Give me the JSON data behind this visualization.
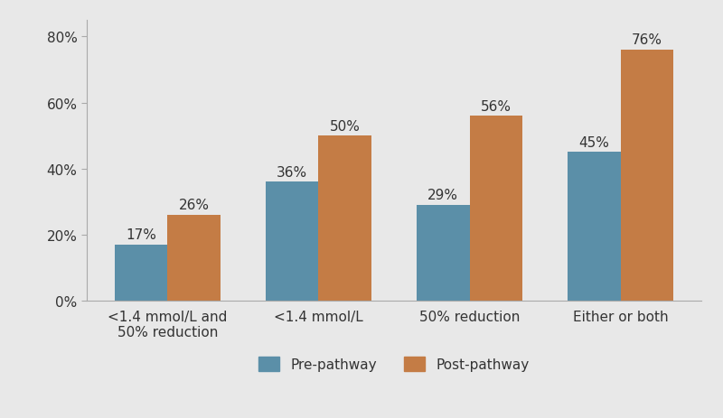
{
  "categories": [
    "<1.4 mmol/L and\n50% reduction",
    "<1.4 mmol/L",
    "50% reduction",
    "Either or both"
  ],
  "pre_values": [
    17,
    36,
    29,
    45
  ],
  "post_values": [
    26,
    50,
    56,
    76
  ],
  "pre_color": "#5b8fa8",
  "post_color": "#c47c45",
  "background_color": "#e8e8e8",
  "ylim": [
    0,
    85
  ],
  "yticks": [
    0,
    20,
    40,
    60,
    80
  ],
  "ytick_labels": [
    "0%",
    "20%",
    "40%",
    "60%",
    "80%"
  ],
  "legend_labels": [
    "Pre-pathway",
    "Post-pathway"
  ],
  "bar_width": 0.35,
  "tick_fontsize": 11,
  "legend_fontsize": 11,
  "value_fontsize": 11,
  "spine_color": "#aaaaaa",
  "text_color": "#333333"
}
